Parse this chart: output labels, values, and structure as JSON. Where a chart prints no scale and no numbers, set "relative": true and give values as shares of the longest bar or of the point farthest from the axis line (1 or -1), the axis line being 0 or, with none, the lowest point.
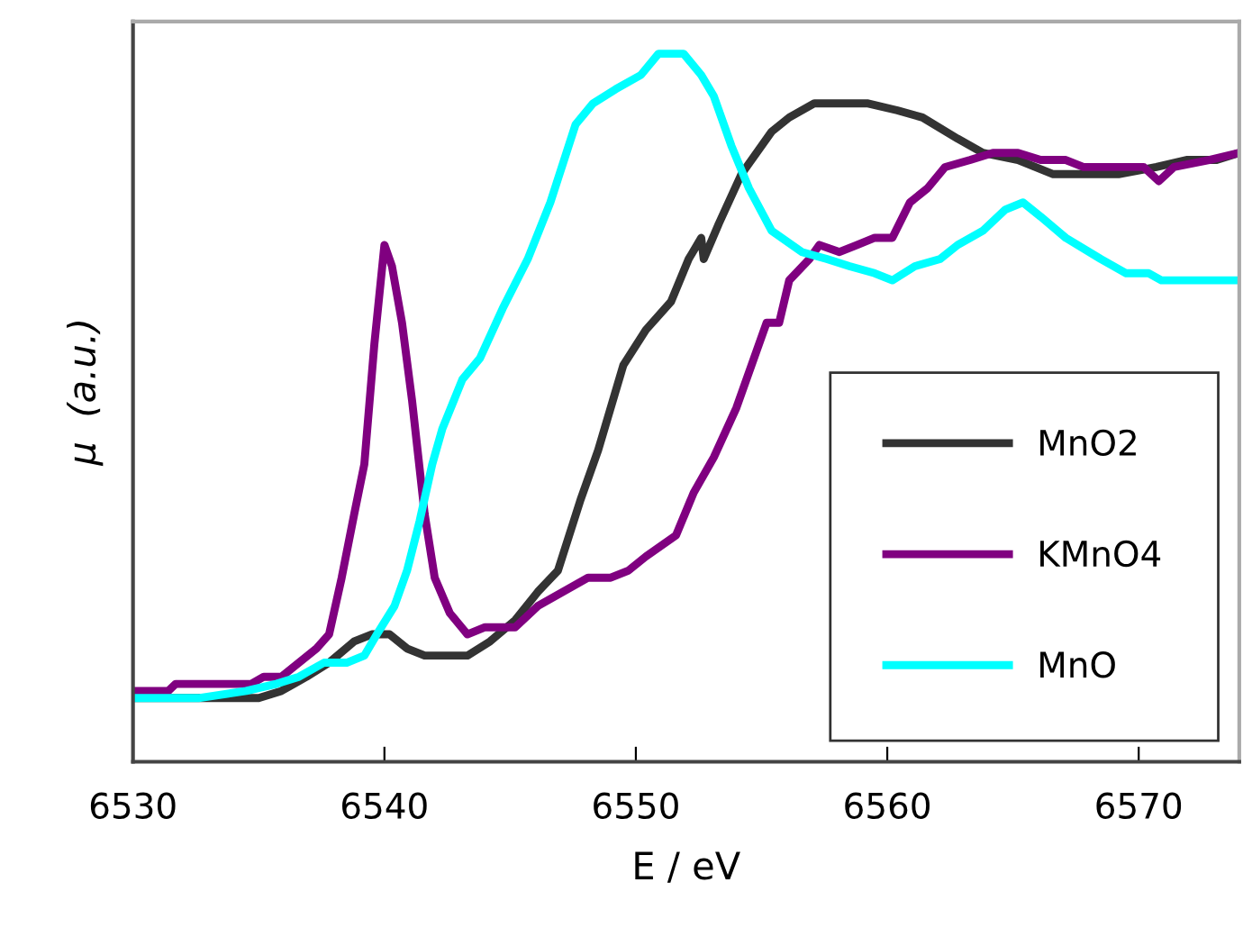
{
  "chart_data": {
    "type": "line",
    "xlabel": "E / eV",
    "ylabel": "μ  (a.u.)",
    "relative": true,
    "xlim": [
      6530,
      6574
    ],
    "xticks": [
      6530,
      6540,
      6550,
      6560,
      6570
    ],
    "grid": false,
    "legend": "bottom right",
    "marker": "none",
    "line_style": "solid",
    "series": [
      {
        "name": "MnO2",
        "color": "#333333",
        "x": [
          6530.1,
          6535.0,
          6535.9,
          6536.9,
          6537.8,
          6538.8,
          6539.5,
          6540.2,
          6540.9,
          6541.6,
          6543.3,
          6544.2,
          6545.2,
          6546.1,
          6546.9,
          6547.8,
          6548.5,
          6549.5,
          6550.4,
          6551.4,
          6552.1,
          6552.6,
          6552.7,
          6553.3,
          6554.2,
          6555.4,
          6556.1,
          6557.1,
          6559.2,
          6560.4,
          6561.4,
          6562.8,
          6563.8,
          6565.2,
          6566.6,
          6568.1,
          6569.2,
          6570.7,
          6571.9,
          6573.1,
          6574.0
        ],
        "values": [
          0.09,
          0.09,
          0.1,
          0.12,
          0.14,
          0.17,
          0.18,
          0.18,
          0.16,
          0.15,
          0.15,
          0.17,
          0.2,
          0.24,
          0.27,
          0.37,
          0.44,
          0.56,
          0.61,
          0.65,
          0.71,
          0.74,
          0.71,
          0.76,
          0.83,
          0.89,
          0.91,
          0.93,
          0.93,
          0.92,
          0.91,
          0.88,
          0.86,
          0.85,
          0.83,
          0.83,
          0.83,
          0.84,
          0.85,
          0.85,
          0.86
        ]
      },
      {
        "name": "KMnO4",
        "color": "#800080",
        "x": [
          6530.1,
          6531.4,
          6531.7,
          6532.3,
          6533.1,
          6533.8,
          6534.7,
          6535.2,
          6535.9,
          6536.6,
          6537.3,
          6537.8,
          6538.3,
          6538.8,
          6539.2,
          6539.6,
          6540.0,
          6540.3,
          6540.7,
          6541.1,
          6541.6,
          6542.0,
          6542.6,
          6543.3,
          6544.0,
          6545.2,
          6546.1,
          6547.1,
          6548.1,
          6549.0,
          6549.7,
          6550.4,
          6551.6,
          6552.3,
          6553.1,
          6554.0,
          6554.7,
          6555.2,
          6555.7,
          6556.1,
          6556.9,
          6557.3,
          6558.1,
          6558.8,
          6559.5,
          6560.2,
          6560.9,
          6561.6,
          6562.3,
          6563.3,
          6564.2,
          6565.2,
          6566.1,
          6567.1,
          6567.8,
          6568.8,
          6569.5,
          6570.2,
          6570.8,
          6571.4,
          6572.8,
          6574.0
        ],
        "values": [
          0.1,
          0.1,
          0.11,
          0.11,
          0.11,
          0.11,
          0.11,
          0.12,
          0.12,
          0.14,
          0.16,
          0.18,
          0.26,
          0.35,
          0.42,
          0.59,
          0.73,
          0.7,
          0.62,
          0.51,
          0.35,
          0.26,
          0.21,
          0.18,
          0.19,
          0.19,
          0.22,
          0.24,
          0.26,
          0.26,
          0.27,
          0.29,
          0.32,
          0.38,
          0.43,
          0.5,
          0.57,
          0.62,
          0.62,
          0.68,
          0.71,
          0.73,
          0.72,
          0.73,
          0.74,
          0.74,
          0.79,
          0.81,
          0.84,
          0.85,
          0.86,
          0.86,
          0.85,
          0.85,
          0.84,
          0.84,
          0.84,
          0.84,
          0.82,
          0.84,
          0.85,
          0.86
        ]
      },
      {
        "name": "MnO",
        "color": "#00ffff",
        "x": [
          6530.1,
          6532.6,
          6534.5,
          6535.7,
          6536.6,
          6537.6,
          6538.5,
          6539.2,
          6539.7,
          6540.4,
          6540.9,
          6541.4,
          6541.9,
          6542.3,
          6543.1,
          6543.8,
          6544.7,
          6545.7,
          6546.6,
          6547.6,
          6548.3,
          6549.2,
          6550.2,
          6550.9,
          6551.9,
          6552.6,
          6553.1,
          6553.8,
          6554.5,
          6555.4,
          6556.6,
          6557.6,
          6558.5,
          6559.5,
          6560.2,
          6561.1,
          6562.1,
          6562.8,
          6563.8,
          6564.7,
          6565.4,
          6566.1,
          6567.1,
          6568.5,
          6569.5,
          6570.4,
          6570.9,
          6571.6,
          6572.3,
          6574.0
        ],
        "values": [
          0.09,
          0.09,
          0.1,
          0.11,
          0.12,
          0.14,
          0.14,
          0.15,
          0.18,
          0.22,
          0.27,
          0.34,
          0.42,
          0.47,
          0.54,
          0.57,
          0.64,
          0.71,
          0.79,
          0.9,
          0.93,
          0.95,
          0.97,
          1.0,
          1.0,
          0.97,
          0.94,
          0.87,
          0.81,
          0.75,
          0.72,
          0.71,
          0.7,
          0.69,
          0.68,
          0.7,
          0.71,
          0.73,
          0.75,
          0.78,
          0.79,
          0.77,
          0.74,
          0.71,
          0.69,
          0.69,
          0.68,
          0.68,
          0.68,
          0.68
        ]
      }
    ]
  }
}
